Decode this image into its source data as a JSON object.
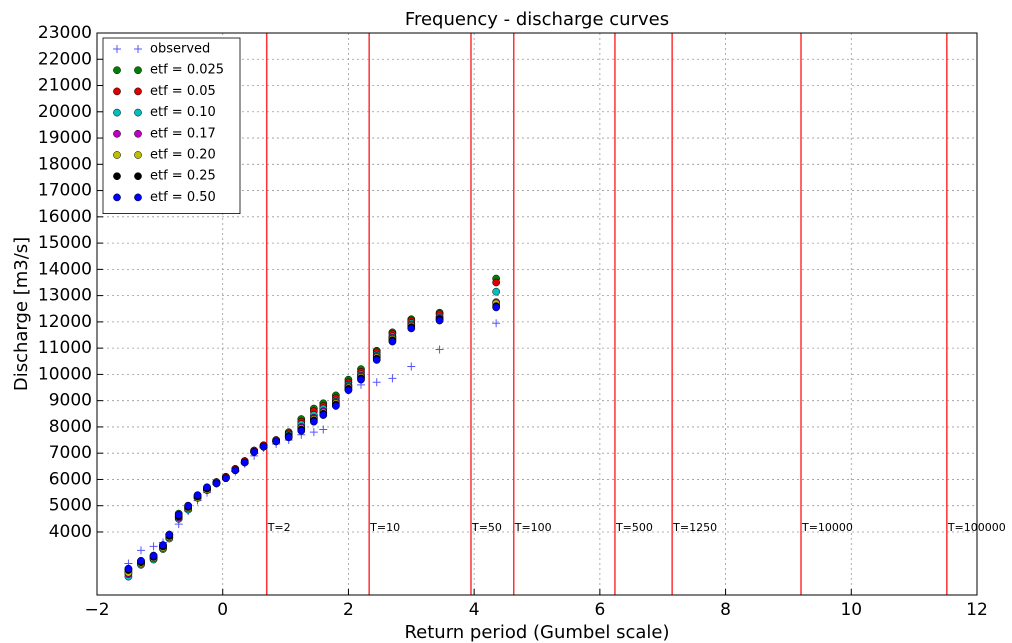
{
  "chart_data": {
    "type": "scatter",
    "title": "Frequency - discharge curves",
    "x_label": "Return period (Gumbel scale)",
    "y_label": "Discharge [m3/s]",
    "xlim": [
      -2,
      12
    ],
    "xticks": [
      {
        "value": -2,
        "label": "−2"
      },
      0,
      2,
      4,
      6,
      8,
      10,
      12
    ],
    "ylim": [
      1600,
      23000
    ],
    "yticks": [
      4000,
      5000,
      6000,
      7000,
      8000,
      9000,
      10000,
      11000,
      12000,
      13000,
      14000,
      15000,
      16000,
      17000,
      18000,
      19000,
      20000,
      21000,
      22000,
      23000
    ],
    "grid": true,
    "legend": "upper left",
    "x": [
      -1.5,
      -1.3,
      -1.1,
      -0.95,
      -0.85,
      -0.7,
      -0.55,
      -0.4,
      -0.25,
      -0.1,
      0.05,
      0.2,
      0.35,
      0.5,
      0.65,
      0.85,
      1.05,
      1.25,
      1.45,
      1.6,
      1.8,
      2.0,
      2.2,
      2.45,
      2.7,
      3.0,
      3.45,
      4.35
    ],
    "series": [
      {
        "name": "observed",
        "color": "#5555ff",
        "marker": "+",
        "values": [
          2800,
          3300,
          3450,
          3600,
          3900,
          4300,
          4800,
          5200,
          5500,
          5900,
          6100,
          6300,
          6600,
          6900,
          7200,
          7350,
          7500,
          7700,
          7800,
          7900,
          8800,
          9400,
          9600,
          9700,
          9850,
          10300,
          10950,
          11950
        ]
      },
      {
        "name": "etf = 0.025",
        "color": "#008000",
        "marker": "o",
        "values": [
          2600,
          2900,
          3100,
          3500,
          3900,
          4700,
          5000,
          5400,
          5700,
          5900,
          6100,
          6400,
          6700,
          7100,
          7300,
          7500,
          7800,
          8300,
          8700,
          8900,
          9200,
          9800,
          10200,
          10900,
          11600,
          12100,
          12350,
          13650
        ]
      },
      {
        "name": "etf = 0.05",
        "color": "#dd0000",
        "marker": "o",
        "values": [
          2500,
          2850,
          3050,
          3450,
          3850,
          4650,
          4950,
          5350,
          5650,
          5900,
          6100,
          6400,
          6700,
          7100,
          7300,
          7500,
          7750,
          8200,
          8600,
          8800,
          9100,
          9700,
          10100,
          10850,
          11550,
          12050,
          12300,
          13500
        ]
      },
      {
        "name": "etf = 0.10",
        "color": "#00bfbf",
        "marker": "o",
        "values": [
          2300,
          2750,
          2950,
          3350,
          3750,
          4500,
          4850,
          5300,
          5600,
          5850,
          6050,
          6350,
          6650,
          7050,
          7250,
          7450,
          7700,
          8100,
          8450,
          8700,
          9000,
          9600,
          10000,
          10750,
          11450,
          11950,
          12200,
          13150
        ]
      },
      {
        "name": "etf = 0.17",
        "color": "#bf00bf",
        "marker": "o",
        "values": [
          2400,
          2800,
          3000,
          3400,
          3800,
          4550,
          4900,
          5300,
          5600,
          5850,
          6050,
          6350,
          6650,
          7050,
          7250,
          7450,
          7650,
          8000,
          8350,
          8600,
          8950,
          9550,
          9950,
          10700,
          11400,
          11900,
          12150,
          12750
        ]
      },
      {
        "name": "etf = 0.20",
        "color": "#bfbf00",
        "marker": "o",
        "values": [
          2450,
          2800,
          3000,
          3400,
          3800,
          4600,
          4900,
          5300,
          5600,
          5850,
          6050,
          6350,
          6650,
          7050,
          7250,
          7450,
          7650,
          7950,
          8300,
          8550,
          8900,
          9500,
          9900,
          10650,
          11350,
          11850,
          12100,
          12700
        ]
      },
      {
        "name": "etf = 0.25",
        "color": "#000000",
        "marker": "o",
        "values": [
          2550,
          2850,
          3050,
          3450,
          3850,
          4600,
          4950,
          5350,
          5650,
          5850,
          6050,
          6350,
          6650,
          7050,
          7250,
          7450,
          7650,
          7900,
          8250,
          8500,
          8850,
          9450,
          9850,
          10600,
          11300,
          11800,
          12100,
          12600
        ]
      },
      {
        "name": "etf = 0.50",
        "color": "#0000ff",
        "marker": "o",
        "values": [
          2600,
          2900,
          3100,
          3500,
          3900,
          4650,
          5000,
          5400,
          5700,
          5850,
          6050,
          6350,
          6650,
          7050,
          7250,
          7450,
          7600,
          7850,
          8200,
          8450,
          8800,
          9400,
          9800,
          10550,
          11250,
          11750,
          12050,
          12550
        ]
      }
    ],
    "reference_line_color": "#ff3333",
    "reference_lines": [
      {
        "x": 0.7,
        "label": "T=2"
      },
      {
        "x": 2.33,
        "label": "T=10"
      },
      {
        "x": 3.95,
        "label": "T=50"
      },
      {
        "x": 4.63,
        "label": "T=100"
      },
      {
        "x": 6.24,
        "label": "T=500"
      },
      {
        "x": 7.15,
        "label": "T=1250"
      },
      {
        "x": 9.2,
        "label": "T=10000"
      },
      {
        "x": 11.52,
        "label": "T=100000"
      }
    ]
  }
}
